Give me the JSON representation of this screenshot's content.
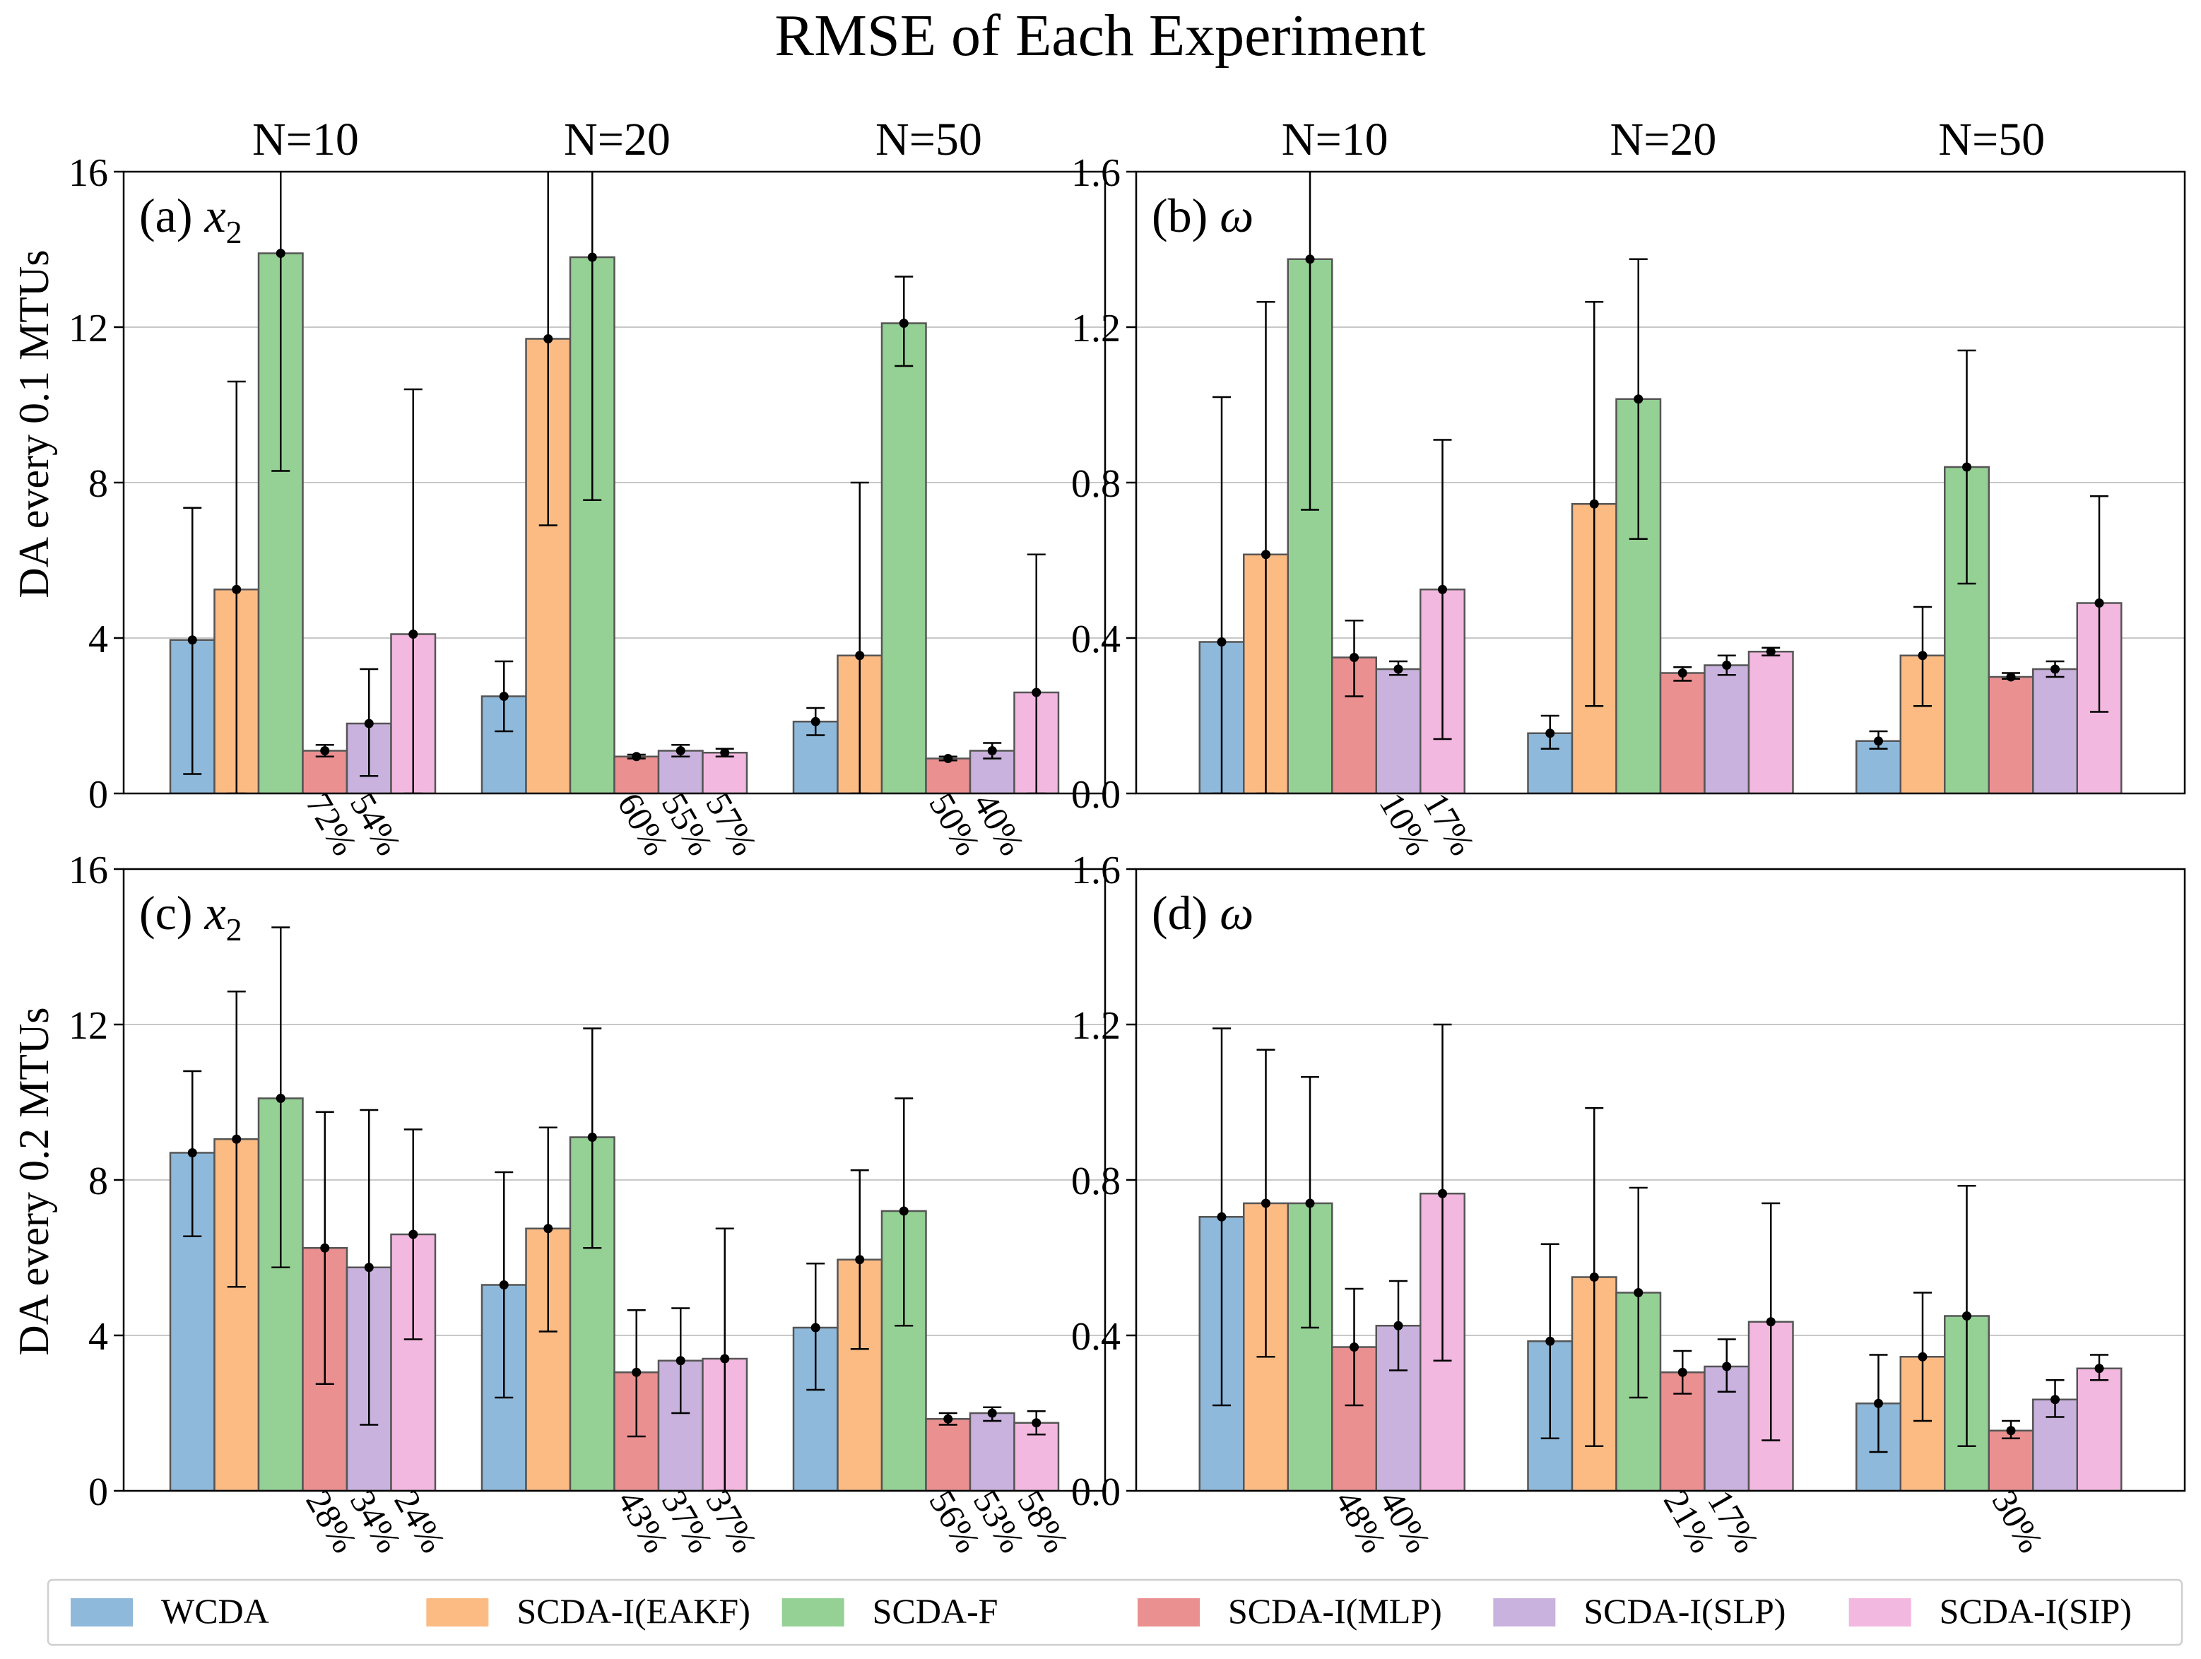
{
  "title": "RMSE of Each Experiment",
  "colors": {
    "WCDA": "#8fb9da",
    "SCDA-I(EAKF)": "#fdbb84",
    "SCDA-F": "#95d095",
    "SCDA-I(MLP)": "#ea9091",
    "SCDA-I(SLP)": "#c9b2dd",
    "SCDA-I(SIP)": "#f2b8df"
  },
  "legend": {
    "placement": "bottom",
    "items": [
      "WCDA",
      "SCDA-I(EAKF)",
      "SCDA-F",
      "SCDA-I(MLP)",
      "SCDA-I(SLP)",
      "SCDA-I(SIP)"
    ]
  },
  "row_labels": [
    "DA every 0.1 MTUs",
    "DA every 0.2 MTUs"
  ],
  "chart_data": [
    {
      "type": "bar",
      "panel": "(a)",
      "variable": "x2",
      "ylim": [
        0,
        16
      ],
      "yticks": [
        "0",
        "4",
        "8",
        "12",
        "16"
      ],
      "group_labels": [
        "N=10",
        "N=20",
        "N=50"
      ],
      "grid": true,
      "series": [
        {
          "name": "WCDA",
          "values": [
            3.95,
            2.5,
            1.85
          ],
          "err_lo": [
            0.5,
            1.6,
            1.5
          ],
          "err_hi": [
            7.35,
            3.4,
            2.2
          ]
        },
        {
          "name": "SCDA-I(EAKF)",
          "values": [
            5.25,
            11.7,
            3.55
          ],
          "err_lo": [
            0,
            6.9,
            0
          ],
          "err_hi": [
            10.6,
            16.5,
            8.0
          ]
        },
        {
          "name": "SCDA-F",
          "values": [
            13.9,
            13.8,
            12.1
          ],
          "err_lo": [
            8.3,
            7.55,
            11.0
          ],
          "err_hi": [
            16.5,
            16.5,
            13.3
          ]
        },
        {
          "name": "SCDA-I(MLP)",
          "values": [
            1.1,
            0.95,
            0.9
          ],
          "err_lo": [
            0.95,
            0.9,
            0.85
          ],
          "err_hi": [
            1.25,
            1.0,
            0.95
          ]
        },
        {
          "name": "SCDA-I(SLP)",
          "values": [
            1.8,
            1.1,
            1.1
          ],
          "err_lo": [
            0.45,
            0.95,
            0.9
          ],
          "err_hi": [
            3.2,
            1.25,
            1.3
          ]
        },
        {
          "name": "SCDA-I(SIP)",
          "values": [
            4.1,
            1.05,
            2.6
          ],
          "err_lo": [
            0,
            0.95,
            0
          ],
          "err_hi": [
            10.4,
            1.15,
            6.15
          ]
        }
      ],
      "annotations": [
        [
          "72%",
          "54%"
        ],
        [
          "60%",
          "55%",
          "57%"
        ],
        [
          "50%",
          "40%"
        ]
      ]
    },
    {
      "type": "bar",
      "panel": "(b)",
      "variable": "ω",
      "ylim": [
        0,
        1.6
      ],
      "yticks": [
        "0.0",
        "0.4",
        "0.8",
        "1.2",
        "1.6"
      ],
      "group_labels": [
        "N=10",
        "N=20",
        "N=50"
      ],
      "grid": true,
      "series": [
        {
          "name": "WCDA",
          "values": [
            0.39,
            0.155,
            0.135
          ],
          "err_lo": [
            0,
            0.115,
            0.115
          ],
          "err_hi": [
            1.02,
            0.2,
            0.16
          ]
        },
        {
          "name": "SCDA-I(EAKF)",
          "values": [
            0.615,
            0.745,
            0.355
          ],
          "err_lo": [
            0,
            0.225,
            0.225
          ],
          "err_hi": [
            1.265,
            1.265,
            0.48
          ]
        },
        {
          "name": "SCDA-F",
          "values": [
            1.375,
            1.015,
            0.84
          ],
          "err_lo": [
            0.73,
            0.655,
            0.54
          ],
          "err_hi": [
            1.65,
            1.375,
            1.14
          ]
        },
        {
          "name": "SCDA-I(MLP)",
          "values": [
            0.35,
            0.31,
            0.3
          ],
          "err_lo": [
            0.25,
            0.29,
            0.295
          ],
          "err_hi": [
            0.445,
            0.325,
            0.31
          ]
        },
        {
          "name": "SCDA-I(SLP)",
          "values": [
            0.32,
            0.33,
            0.32
          ],
          "err_lo": [
            0.305,
            0.305,
            0.3
          ],
          "err_hi": [
            0.34,
            0.355,
            0.34
          ]
        },
        {
          "name": "SCDA-I(SIP)",
          "values": [
            0.525,
            0.365,
            0.49
          ],
          "err_lo": [
            0.14,
            0.355,
            0.21
          ],
          "err_hi": [
            0.91,
            0.375,
            0.765
          ]
        }
      ],
      "annotations": [
        [
          "",
          "10%",
          "17%"
        ],
        [],
        []
      ]
    },
    {
      "type": "bar",
      "panel": "(c)",
      "variable": "x2",
      "ylim": [
        0,
        16
      ],
      "yticks": [
        "0",
        "4",
        "8",
        "12",
        "16"
      ],
      "grid": true,
      "series": [
        {
          "name": "WCDA",
          "values": [
            8.7,
            5.3,
            4.2
          ],
          "err_lo": [
            6.55,
            2.4,
            2.6
          ],
          "err_hi": [
            10.8,
            8.2,
            5.85
          ]
        },
        {
          "name": "SCDA-I(EAKF)",
          "values": [
            9.05,
            6.75,
            5.95
          ],
          "err_lo": [
            5.25,
            4.1,
            3.65
          ],
          "err_hi": [
            12.85,
            9.35,
            8.25
          ]
        },
        {
          "name": "SCDA-F",
          "values": [
            10.1,
            9.1,
            7.2
          ],
          "err_lo": [
            5.75,
            6.25,
            4.25
          ],
          "err_hi": [
            14.5,
            11.9,
            10.1
          ]
        },
        {
          "name": "SCDA-I(MLP)",
          "values": [
            6.25,
            3.05,
            1.85
          ],
          "err_lo": [
            2.75,
            1.4,
            1.7
          ],
          "err_hi": [
            9.75,
            4.65,
            2.0
          ]
        },
        {
          "name": "SCDA-I(SLP)",
          "values": [
            5.75,
            3.35,
            2.0
          ],
          "err_lo": [
            1.7,
            2.0,
            1.8
          ],
          "err_hi": [
            9.8,
            4.7,
            2.15
          ]
        },
        {
          "name": "SCDA-I(SIP)",
          "values": [
            6.6,
            3.4,
            1.75
          ],
          "err_lo": [
            3.9,
            0,
            1.45
          ],
          "err_hi": [
            9.3,
            6.75,
            2.05
          ]
        }
      ],
      "annotations": [
        [
          "28%",
          "34%",
          "24%"
        ],
        [
          "43%",
          "37%",
          "37%"
        ],
        [
          "56%",
          "53%",
          "58%"
        ]
      ]
    },
    {
      "type": "bar",
      "panel": "(d)",
      "variable": "ω",
      "ylim": [
        0,
        1.6
      ],
      "yticks": [
        "0.0",
        "0.4",
        "0.8",
        "1.2",
        "1.6"
      ],
      "grid": true,
      "series": [
        {
          "name": "WCDA",
          "values": [
            0.705,
            0.385,
            0.225
          ],
          "err_lo": [
            0.22,
            0.135,
            0.1
          ],
          "err_hi": [
            1.19,
            0.635,
            0.35
          ]
        },
        {
          "name": "SCDA-I(EAKF)",
          "values": [
            0.74,
            0.55,
            0.345
          ],
          "err_lo": [
            0.345,
            0.115,
            0.18
          ],
          "err_hi": [
            1.135,
            0.985,
            0.51
          ]
        },
        {
          "name": "SCDA-F",
          "values": [
            0.74,
            0.51,
            0.45
          ],
          "err_lo": [
            0.42,
            0.24,
            0.115
          ],
          "err_hi": [
            1.065,
            0.78,
            0.785
          ]
        },
        {
          "name": "SCDA-I(MLP)",
          "values": [
            0.37,
            0.305,
            0.155
          ],
          "err_lo": [
            0.22,
            0.25,
            0.135
          ],
          "err_hi": [
            0.52,
            0.36,
            0.18
          ]
        },
        {
          "name": "SCDA-I(SLP)",
          "values": [
            0.425,
            0.32,
            0.235
          ],
          "err_lo": [
            0.31,
            0.255,
            0.19
          ],
          "err_hi": [
            0.54,
            0.39,
            0.285
          ]
        },
        {
          "name": "SCDA-I(SIP)",
          "values": [
            0.765,
            0.435,
            0.315
          ],
          "err_lo": [
            0.335,
            0.13,
            0.285
          ],
          "err_hi": [
            1.2,
            0.74,
            0.35
          ]
        }
      ],
      "annotations": [
        [
          "48%",
          "40%"
        ],
        [
          "21%",
          "17%"
        ],
        [
          "30%"
        ]
      ]
    }
  ]
}
